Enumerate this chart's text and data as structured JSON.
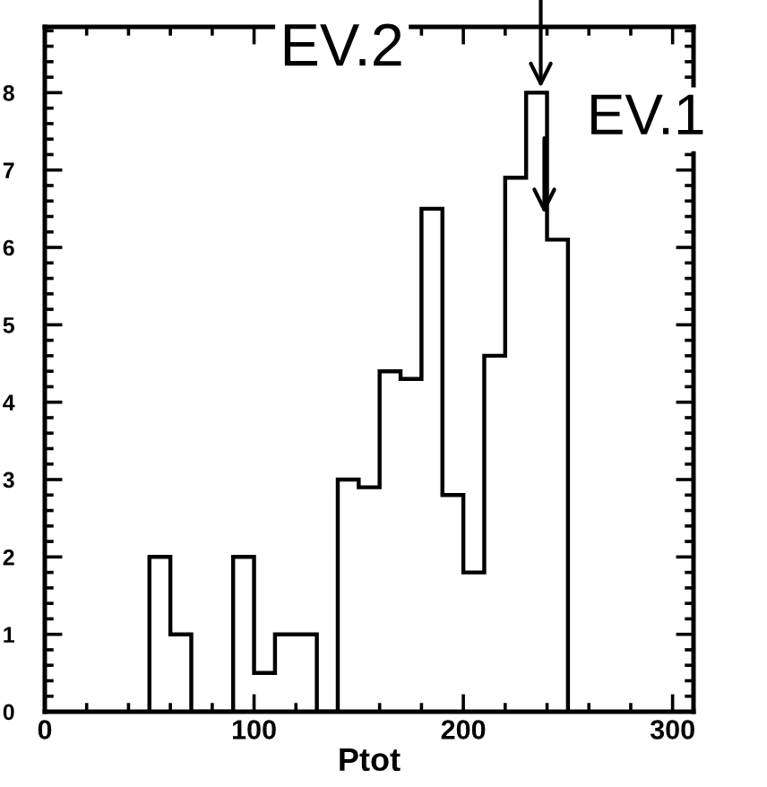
{
  "chart_data": {
    "type": "histogram",
    "xlabel": "Ptot",
    "bins": [
      50,
      60,
      70,
      80,
      90,
      100,
      110,
      120,
      130,
      140,
      150,
      160,
      170,
      180,
      190,
      200,
      210,
      220,
      230,
      240,
      250
    ],
    "values": [
      2,
      1,
      0,
      0,
      2,
      0.5,
      1,
      1,
      0,
      3,
      2.9,
      4.4,
      4.3,
      6.5,
      2.8,
      1.8,
      4.6,
      6.9,
      8.0,
      6.1
    ],
    "color": "#000000",
    "xlim": [
      0,
      310
    ],
    "xticks": [
      0,
      100,
      200,
      300
    ],
    "ylim": [
      0,
      8.85
    ],
    "yticks": [
      0,
      1,
      2,
      3,
      4,
      5,
      6,
      7,
      8
    ],
    "annotations": [
      {
        "text": "EV.2",
        "x": 237,
        "y": 8.0
      },
      "EV.1"
    ],
    "grid": false
  }
}
